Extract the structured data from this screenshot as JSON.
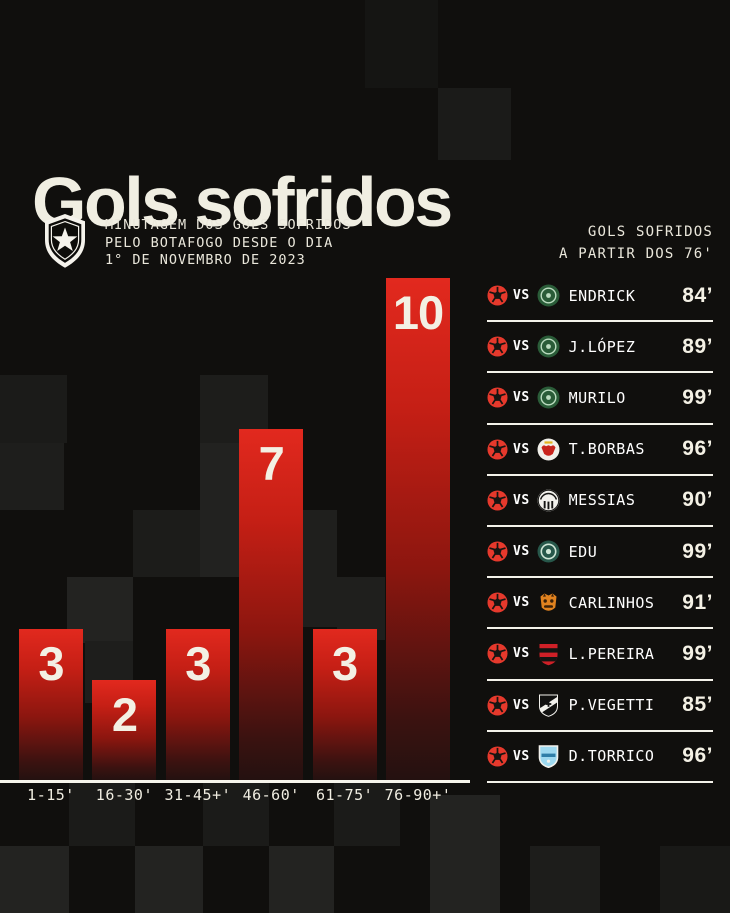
{
  "page": {
    "background": "#100f0d",
    "accent_red": "#e2291e",
    "cream": "#f0eee2"
  },
  "header": {
    "title": "Gols sofridos",
    "crest_icon": "botafogo-crest",
    "subtitle_lines": [
      "MINUTAGEM DOS GOLS SOFRIDOS",
      "PELO BOTAFOGO DESDE O DIA",
      "1° DE NOVEMBRO DE 2023"
    ]
  },
  "chart_data": {
    "type": "bar",
    "title": "Minutagem dos gols sofridos pelo Botafogo desde o dia 1° de novembro de 2023",
    "categories": [
      "1-15'",
      "16-30'",
      "31-45+'",
      "46-60'",
      "61-75'",
      "76-90+'"
    ],
    "values": [
      3,
      2,
      3,
      7,
      3,
      10
    ],
    "xlabel": "",
    "ylabel": "Gols sofridos",
    "ylim": [
      0,
      10
    ],
    "grid": false,
    "legend": "none",
    "bar_color_top": "#e2291e",
    "bar_color_bottom": "#241110",
    "value_label_color": "#f3f0e4",
    "axis_label_color": "#f0ede1",
    "baseline_color": "#f7f5ec"
  },
  "panel": {
    "header_lines": [
      "GOLS SOFRIDOS",
      "A PARTIR DOS 76'"
    ],
    "vs_label": "VS",
    "botafogo_ball_color": "#e6392c",
    "rows": [
      {
        "player": "ENDRICK",
        "minute": "84’",
        "club": "palmeiras"
      },
      {
        "player": "J.LÓPEZ",
        "minute": "89’",
        "club": "palmeiras"
      },
      {
        "player": "MURILO",
        "minute": "99’",
        "club": "palmeiras"
      },
      {
        "player": "T.BORBAS",
        "minute": "96’",
        "club": "bragantino"
      },
      {
        "player": "MESSIAS",
        "minute": "90’",
        "club": "santos"
      },
      {
        "player": "EDU",
        "minute": "99’",
        "club": "coritiba"
      },
      {
        "player": "CARLINHOS",
        "minute": "91’",
        "club": "nova-iguacu"
      },
      {
        "player": "L.PEREIRA",
        "minute": "99’",
        "club": "flamengo"
      },
      {
        "player": "P.VEGETTI",
        "minute": "85’",
        "club": "vasco"
      },
      {
        "player": "D.TORRICO",
        "minute": "96’",
        "club": "bolivar"
      }
    ],
    "club_colors": {
      "palmeiras": {
        "primary": "#2a5c38",
        "secondary": "#bcdcc0"
      },
      "bragantino": {
        "primary": "#f0efe9",
        "secondary": "#c8241c",
        "tertiary": "#e4b31e"
      },
      "santos": {
        "primary": "#f2f1ec",
        "secondary": "#141412"
      },
      "coritiba": {
        "primary": "#27574a",
        "secondary": "#cfe5d6"
      },
      "nova-iguacu": {
        "primary": "#e0821f",
        "secondary": "#3a2008"
      },
      "flamengo": {
        "primary": "#cf2027",
        "secondary": "#141412"
      },
      "vasco": {
        "primary": "#111110",
        "secondary": "#f2f1ec"
      },
      "bolivar": {
        "primary": "#9ed9f0",
        "secondary": "#f2f1ec",
        "tertiary": "#2f7ea8"
      }
    }
  }
}
